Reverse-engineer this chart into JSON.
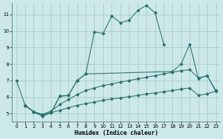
{
  "background_color": "#cde8e8",
  "grid_color": "#aacfcf",
  "line_color": "#2a7070",
  "xlabel": "Humidex (Indice chaleur)",
  "xlim": [
    -0.5,
    23.5
  ],
  "ylim": [
    4.5,
    11.7
  ],
  "yticks": [
    5,
    6,
    7,
    8,
    9,
    10,
    11
  ],
  "xticks": [
    0,
    1,
    2,
    3,
    4,
    5,
    6,
    7,
    8,
    9,
    10,
    11,
    12,
    13,
    14,
    15,
    16,
    17,
    18,
    19,
    20,
    21,
    22,
    23
  ],
  "series": [
    {
      "x": [
        0,
        1,
        2,
        3,
        4,
        5,
        6,
        7,
        8,
        9,
        10,
        11,
        12,
        13,
        14,
        15,
        16,
        17
      ],
      "y": [
        7.0,
        5.5,
        5.1,
        4.85,
        5.05,
        6.05,
        6.1,
        7.0,
        7.4,
        9.95,
        9.85,
        10.9,
        10.5,
        10.65,
        11.25,
        11.55,
        11.1,
        9.2
      ]
    },
    {
      "x": [
        1,
        2,
        3,
        4,
        5,
        6,
        7,
        8,
        18,
        19,
        20,
        21,
        22,
        23
      ],
      "y": [
        5.5,
        5.1,
        4.85,
        5.05,
        6.05,
        6.1,
        7.0,
        7.4,
        7.55,
        8.0,
        9.2,
        7.1,
        7.3,
        6.35
      ]
    },
    {
      "x": [
        1,
        2,
        3,
        4,
        5,
        6,
        7,
        8,
        9,
        10,
        11,
        12,
        13,
        14,
        15,
        16,
        17,
        18,
        19,
        20,
        21,
        22,
        23
      ],
      "y": [
        5.5,
        5.1,
        4.95,
        5.15,
        5.55,
        5.85,
        6.15,
        6.4,
        6.55,
        6.7,
        6.8,
        6.9,
        7.0,
        7.1,
        7.2,
        7.3,
        7.4,
        7.5,
        7.6,
        7.65,
        7.15,
        7.3,
        6.4
      ]
    },
    {
      "x": [
        1,
        2,
        3,
        4,
        5,
        6,
        7,
        8,
        9,
        10,
        11,
        12,
        13,
        14,
        15,
        16,
        17,
        18,
        19,
        20,
        21,
        22,
        23
      ],
      "y": [
        5.5,
        5.1,
        4.95,
        5.05,
        5.2,
        5.35,
        5.5,
        5.6,
        5.7,
        5.8,
        5.88,
        5.95,
        6.02,
        6.1,
        6.18,
        6.25,
        6.32,
        6.4,
        6.48,
        6.55,
        6.1,
        6.2,
        6.35
      ]
    }
  ]
}
